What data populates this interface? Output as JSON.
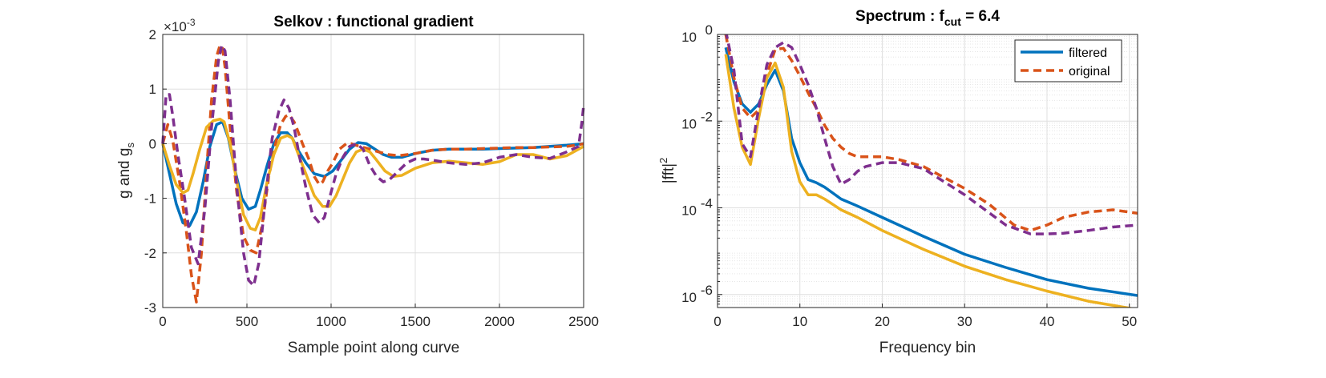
{
  "colors": {
    "blue": "#0072BD",
    "orange": "#D95319",
    "yellow": "#EDB120",
    "purple": "#7E2F8E",
    "grid": "#dfdfdf",
    "axes": "#262626"
  },
  "chart_data": [
    {
      "type": "line",
      "title": "Selkov : functional gradient",
      "xlabel": "Sample point along curve",
      "ylabel_main": "g and g",
      "ylabel_sub": "s",
      "exponent_prefix": "×10",
      "exponent_power": "-3",
      "xlim": [
        0,
        2500
      ],
      "ylim": [
        -3,
        2
      ],
      "xscale": "linear",
      "yscale": "linear",
      "grid": true,
      "x_ticks": [
        0,
        500,
        1000,
        1500,
        2000,
        2500
      ],
      "x_tick_labels": [
        "0",
        "500",
        "1000",
        "1500",
        "2000",
        "2500"
      ],
      "y_ticks": [
        -3,
        -2,
        -1,
        0,
        1,
        2
      ],
      "y_tick_labels": [
        "-3",
        "-2",
        "-1",
        "0",
        "1",
        "2"
      ],
      "series": [
        {
          "color": "#0072BD",
          "style": "solid",
          "x": [
            0,
            40,
            80,
            120,
            160,
            200,
            240,
            280,
            320,
            355,
            390,
            430,
            470,
            510,
            550,
            580,
            620,
            660,
            700,
            740,
            770,
            800,
            850,
            900,
            960,
            1010,
            1060,
            1110,
            1160,
            1210,
            1260,
            1310,
            1360,
            1420,
            1500,
            1600,
            1700,
            1800,
            1900,
            2000,
            2100,
            2200,
            2300,
            2400,
            2500
          ],
          "y": [
            0.0,
            -0.55,
            -1.1,
            -1.45,
            -1.5,
            -1.25,
            -0.7,
            -0.05,
            0.35,
            0.4,
            0.1,
            -0.5,
            -1.0,
            -1.2,
            -1.15,
            -0.85,
            -0.4,
            0.0,
            0.2,
            0.2,
            0.1,
            -0.1,
            -0.35,
            -0.55,
            -0.6,
            -0.5,
            -0.3,
            -0.1,
            0.02,
            0.0,
            -0.1,
            -0.2,
            -0.25,
            -0.25,
            -0.18,
            -0.12,
            -0.1,
            -0.1,
            -0.1,
            -0.09,
            -0.08,
            -0.07,
            -0.05,
            -0.03,
            0.0
          ]
        },
        {
          "color": "#D95319",
          "style": "dashed",
          "x": [
            0,
            30,
            60,
            100,
            140,
            170,
            200,
            230,
            260,
            290,
            320,
            340,
            355,
            370,
            400,
            440,
            480,
            520,
            555,
            590,
            630,
            670,
            700,
            730,
            750,
            780,
            800,
            830,
            870,
            900,
            930,
            950,
            980,
            1010,
            1050,
            1090,
            1120,
            1170,
            1230,
            1280,
            1340,
            1400,
            1500,
            1600,
            1700,
            1800,
            1900,
            2000,
            2100,
            2200,
            2300,
            2400,
            2470,
            2500
          ],
          "y": [
            0.0,
            0.35,
            0.05,
            -0.7,
            -1.6,
            -2.4,
            -2.9,
            -2.0,
            -0.5,
            0.8,
            1.6,
            1.8,
            1.75,
            1.4,
            0.3,
            -0.9,
            -1.7,
            -1.95,
            -2.0,
            -1.5,
            -0.6,
            0.0,
            0.35,
            0.5,
            0.53,
            0.4,
            0.25,
            0.0,
            -0.3,
            -0.6,
            -0.75,
            -0.7,
            -0.5,
            -0.35,
            -0.1,
            0.0,
            0.0,
            -0.05,
            -0.1,
            -0.15,
            -0.2,
            -0.22,
            -0.18,
            -0.12,
            -0.1,
            -0.1,
            -0.09,
            -0.08,
            -0.07,
            -0.07,
            -0.06,
            -0.05,
            -0.02,
            0.0
          ]
        },
        {
          "color": "#EDB120",
          "style": "solid",
          "x": [
            0,
            40,
            80,
            120,
            150,
            180,
            220,
            260,
            300,
            340,
            365,
            400,
            440,
            480,
            520,
            550,
            580,
            620,
            660,
            700,
            740,
            770,
            800,
            850,
            900,
            950,
            990,
            1030,
            1070,
            1110,
            1150,
            1190,
            1230,
            1270,
            1320,
            1370,
            1420,
            1500,
            1600,
            1700,
            1800,
            1900,
            2000,
            2100,
            2200,
            2300,
            2400,
            2500
          ],
          "y": [
            0.0,
            -0.4,
            -0.75,
            -0.9,
            -0.85,
            -0.55,
            -0.1,
            0.3,
            0.42,
            0.45,
            0.4,
            0.0,
            -0.7,
            -1.3,
            -1.55,
            -1.58,
            -1.35,
            -0.7,
            -0.2,
            0.1,
            0.15,
            0.1,
            -0.15,
            -0.55,
            -0.95,
            -1.15,
            -1.15,
            -0.95,
            -0.65,
            -0.35,
            -0.15,
            -0.1,
            -0.15,
            -0.3,
            -0.5,
            -0.6,
            -0.58,
            -0.45,
            -0.35,
            -0.32,
            -0.35,
            -0.38,
            -0.33,
            -0.2,
            -0.2,
            -0.28,
            -0.22,
            -0.05
          ]
        },
        {
          "color": "#7E2F8E",
          "style": "dashed",
          "x": [
            0,
            20,
            40,
            60,
            90,
            130,
            170,
            210,
            250,
            290,
            330,
            350,
            370,
            400,
            440,
            480,
            510,
            540,
            570,
            610,
            650,
            690,
            720,
            750,
            780,
            810,
            850,
            890,
            930,
            960,
            990,
            1030,
            1070,
            1110,
            1150,
            1190,
            1230,
            1270,
            1310,
            1350,
            1400,
            1450,
            1500,
            1550,
            1600,
            1700,
            1800,
            1900,
            2000,
            2100,
            2200,
            2300,
            2400,
            2470,
            2490,
            2500
          ],
          "y": [
            0.0,
            0.9,
            0.9,
            0.5,
            -0.2,
            -1.0,
            -1.9,
            -2.2,
            -1.2,
            0.3,
            1.5,
            1.8,
            1.7,
            0.8,
            -0.8,
            -2.0,
            -2.5,
            -2.6,
            -2.2,
            -1.0,
            0.1,
            0.6,
            0.8,
            0.65,
            0.3,
            -0.2,
            -0.8,
            -1.3,
            -1.45,
            -1.35,
            -1.0,
            -0.55,
            -0.25,
            -0.05,
            0.0,
            -0.1,
            -0.4,
            -0.6,
            -0.7,
            -0.65,
            -0.5,
            -0.35,
            -0.28,
            -0.28,
            -0.3,
            -0.35,
            -0.38,
            -0.35,
            -0.25,
            -0.2,
            -0.25,
            -0.27,
            -0.15,
            -0.05,
            0.4,
            0.7
          ]
        }
      ]
    },
    {
      "type": "line",
      "title_main": "Spectrum : f",
      "title_sub": "cut",
      "title_suffix": " = 6.4",
      "xlabel": "Frequency bin",
      "ylabel_main": "|fft|",
      "ylabel_sup": "2",
      "xlim": [
        0,
        51
      ],
      "ylim_log10": [
        -6.3,
        0
      ],
      "xscale": "linear",
      "yscale": "log",
      "grid": true,
      "minor_grid": true,
      "x_ticks": [
        0,
        10,
        20,
        30,
        40,
        50
      ],
      "x_tick_labels": [
        "0",
        "10",
        "20",
        "30",
        "40",
        "50"
      ],
      "y_ticks_log10": [
        -6,
        -4,
        -2,
        0
      ],
      "y_tick_base": "10",
      "y_tick_exps": [
        "-6",
        "-4",
        "-2",
        "0"
      ],
      "legend": {
        "position": "top-right",
        "entries": [
          "filtered",
          "original"
        ]
      },
      "series": [
        {
          "name": "filtered",
          "color": "#0072BD",
          "style": "solid",
          "x": [
            1,
            2,
            3,
            4,
            5,
            6,
            7,
            8,
            9,
            10,
            11,
            12,
            13,
            14,
            15,
            17,
            20,
            25,
            30,
            35,
            40,
            45,
            51
          ],
          "y": [
            0.5,
            0.08,
            0.025,
            0.016,
            0.025,
            0.07,
            0.15,
            0.05,
            0.004,
            0.0011,
            0.00045,
            0.00038,
            0.0003,
            0.00022,
            0.00016,
            0.00011,
            6e-05,
            2.2e-05,
            8.5e-06,
            4.2e-06,
            2.2e-06,
            1.4e-06,
            9.5e-07
          ]
        },
        {
          "name": "original",
          "color": "#D95319",
          "style": "dashed",
          "x": [
            1,
            2,
            3,
            4,
            5,
            6,
            7,
            8,
            9,
            10,
            11,
            12,
            13,
            14,
            15,
            16,
            17,
            18,
            20,
            22,
            25,
            30,
            33,
            36,
            38,
            40,
            42,
            45,
            48,
            51
          ],
          "y": [
            1.0,
            0.1,
            0.02,
            0.012,
            0.018,
            0.12,
            0.45,
            0.48,
            0.25,
            0.11,
            0.045,
            0.02,
            0.008,
            0.004,
            0.0025,
            0.0018,
            0.0015,
            0.0015,
            0.0015,
            0.0013,
            0.0009,
            0.00028,
            0.00012,
            4e-05,
            3e-05,
            4e-05,
            6e-05,
            8e-05,
            9e-05,
            7.5e-05
          ]
        },
        {
          "color": "#EDB120",
          "style": "solid",
          "x": [
            1,
            2,
            3,
            4,
            5,
            6,
            7,
            8,
            9,
            10,
            11,
            12,
            13,
            14,
            15,
            17,
            20,
            25,
            30,
            35,
            40,
            45,
            51
          ],
          "y": [
            0.35,
            0.02,
            0.0025,
            0.001,
            0.012,
            0.1,
            0.22,
            0.06,
            0.002,
            0.0004,
            0.0002,
            0.0002,
            0.00016,
            0.00012,
            9e-05,
            6e-05,
            3e-05,
            1.1e-05,
            4.5e-06,
            2.2e-06,
            1.2e-06,
            7e-07,
            4.5e-07
          ]
        },
        {
          "color": "#7E2F8E",
          "style": "dashed",
          "x": [
            1,
            2,
            3,
            4,
            5,
            6,
            7,
            8,
            9,
            10,
            11,
            12,
            13,
            14,
            15,
            16,
            17,
            18,
            20,
            22,
            25,
            30,
            35,
            38,
            40,
            42,
            45,
            48,
            51
          ],
          "y": [
            1.2,
            0.15,
            0.003,
            0.0015,
            0.02,
            0.2,
            0.5,
            0.65,
            0.5,
            0.2,
            0.07,
            0.02,
            0.004,
            0.0009,
            0.00035,
            0.00045,
            0.0007,
            0.0009,
            0.0011,
            0.0011,
            0.0008,
            0.0002,
            4e-05,
            2.5e-05,
            2.5e-05,
            2.6e-05,
            3e-05,
            3.6e-05,
            4e-05
          ]
        }
      ]
    }
  ]
}
